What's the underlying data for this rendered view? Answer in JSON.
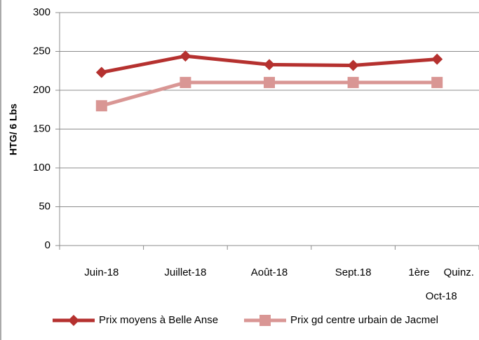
{
  "chart_data": {
    "type": "line",
    "y_label": "HTG/ 6 Lbs",
    "categories": [
      "Juin-18",
      "Juillet-18",
      "Août-18",
      "Sept.18",
      "1ère Quinz. Oct-18"
    ],
    "series": [
      {
        "name": "Prix moyens à Belle Anse",
        "color": "#b5312f",
        "marker": "diamond",
        "values": [
          223,
          244,
          233,
          232,
          240
        ]
      },
      {
        "name": "Prix gd centre urbain de Jacmel",
        "color": "#d99694",
        "marker": "square",
        "values": [
          180,
          210,
          210,
          210,
          210
        ]
      }
    ],
    "ylim": [
      0,
      300
    ],
    "yticks": [
      0,
      50,
      100,
      150,
      200,
      250,
      300
    ],
    "grid": true,
    "legend": "bottom"
  }
}
